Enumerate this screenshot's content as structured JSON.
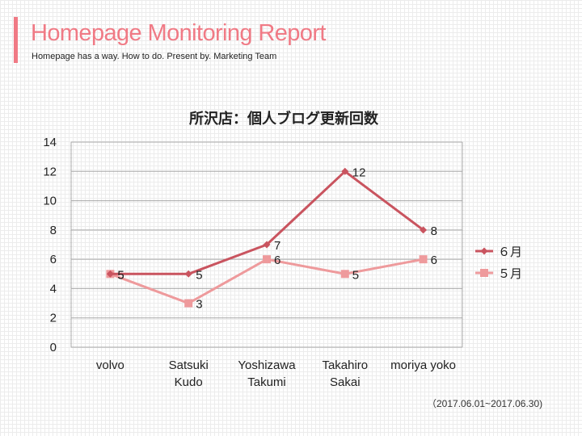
{
  "colors": {
    "accent": "#f07a85",
    "series_june": "#c9545f",
    "series_may": "#ee9a9c",
    "grid": "#a8a8a8",
    "text": "#222222"
  },
  "header": {
    "title": "Homepage Monitoring Report",
    "subtitle": "Homepage has a way. How to do. Present by. Marketing Team"
  },
  "footer": {
    "date_range": "（2017.06.01~2017.06.30)"
  },
  "chart_data": {
    "type": "line",
    "title": "所沢店：個人ブログ更新回数",
    "xlabel": "",
    "ylabel": "",
    "categories": [
      [
        "volvo"
      ],
      [
        "Satsuki",
        "Kudo"
      ],
      [
        "Yoshizawa",
        "Takumi"
      ],
      [
        "Takahiro",
        "Sakai"
      ],
      [
        "moriya yoko"
      ]
    ],
    "series": [
      {
        "name": "６月",
        "values": [
          5,
          5,
          7,
          12,
          8
        ],
        "marker": "diamond",
        "color": "#c9545f"
      },
      {
        "name": "５月",
        "values": [
          5,
          3,
          6,
          5,
          6
        ],
        "marker": "square",
        "color": "#ee9a9c"
      }
    ],
    "ylim": [
      0,
      14
    ],
    "yticks": [
      0,
      2,
      4,
      6,
      8,
      10,
      12,
      14
    ],
    "grid": true,
    "data_labels": true,
    "legend_position": "right"
  }
}
